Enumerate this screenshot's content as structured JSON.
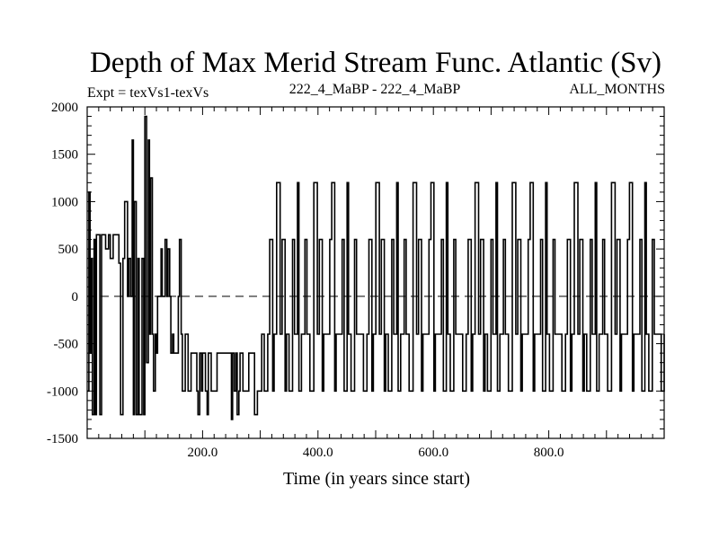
{
  "chart_data": {
    "type": "line",
    "title": "Depth of Max Merid Stream Func. Atlantic (Sv)",
    "subtitle_left": "Expt = texVs1-texVs",
    "subtitle_center": "222_4_MaBP - 222_4_MaBP",
    "subtitle_right": "ALL_MONTHS",
    "xlabel": "Time (in years since start)",
    "ylabel": "",
    "xlim": [
      0,
      1000
    ],
    "ylim": [
      -1500,
      2000
    ],
    "xticks": [
      200,
      400,
      600,
      800
    ],
    "xtick_labels": [
      "200.0",
      "400.0",
      "600.0",
      "800.0"
    ],
    "yticks": [
      -1500,
      -1000,
      -500,
      0,
      500,
      1000,
      1500,
      2000
    ],
    "ytick_labels": [
      "-1500",
      "-1000",
      "-500",
      "0",
      "500",
      "1000",
      "1500",
      "2000"
    ],
    "reference_line": {
      "y": 0,
      "style": "dashed"
    },
    "step_pattern": [
      -400,
      -1000,
      -400,
      600,
      -1000,
      -400,
      1200,
      -400,
      600,
      -1000,
      -400,
      -1000,
      600,
      -400,
      1200,
      -1000,
      -400,
      600,
      -400,
      -1000,
      -1000,
      1200,
      -400,
      600,
      -1000,
      -400,
      -400,
      600,
      1200,
      -1000,
      -400,
      -400,
      600,
      -1000,
      1200,
      -400,
      -1000,
      600,
      -400,
      -400
    ],
    "series": [
      {
        "name": "Depth of Max Merid Stream Func.",
        "color": "#000000",
        "x": [
          0,
          3,
          5,
          7,
          9,
          12,
          14,
          16,
          19,
          22,
          25,
          28,
          32,
          37,
          40,
          45,
          50,
          55,
          58,
          62,
          65,
          70,
          72,
          75,
          78,
          80,
          82,
          85,
          88,
          90,
          92,
          95,
          98,
          100,
          103,
          106,
          108,
          110,
          113,
          115,
          118,
          120,
          122,
          125,
          128,
          130,
          133,
          135,
          138,
          140,
          143,
          145,
          148,
          150,
          155,
          158,
          160,
          163,
          165,
          170,
          175,
          180,
          185,
          190,
          192,
          195,
          198,
          200,
          203,
          205,
          208,
          210,
          215,
          220,
          225,
          230,
          240,
          250,
          252,
          255,
          258,
          260,
          263,
          265,
          270,
          275,
          280,
          285,
          290,
          295,
          300
        ],
        "y": [
          -1000,
          1100,
          -600,
          400,
          -1250,
          600,
          -1250,
          650,
          650,
          -1250,
          650,
          650,
          500,
          650,
          400,
          650,
          650,
          350,
          -1250,
          400,
          1000,
          0,
          400,
          0,
          1650,
          -1250,
          1000,
          -1250,
          400,
          -1250,
          -1250,
          400,
          -1250,
          1900,
          -700,
          1650,
          -400,
          1250,
          -400,
          -1000,
          -400,
          -600,
          0,
          0,
          500,
          0,
          0,
          600,
          0,
          500,
          0,
          -600,
          -400,
          -600,
          -600,
          0,
          600,
          -400,
          -1000,
          -400,
          -1000,
          -600,
          -600,
          -1000,
          -1250,
          -600,
          -1000,
          -600,
          -600,
          -1000,
          -1250,
          -600,
          -1000,
          -1000,
          -600,
          -600,
          -600,
          -1300,
          -600,
          -1000,
          -600,
          -1250,
          -1000,
          -600,
          -1000,
          -1000,
          -600,
          -600,
          -1250,
          -1000,
          -1000
        ]
      }
    ]
  }
}
